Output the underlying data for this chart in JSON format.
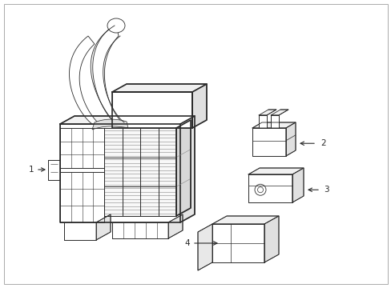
{
  "background_color": "#ffffff",
  "line_color": "#2a2a2a",
  "thin_line": 0.6,
  "thick_line": 1.2,
  "figsize": [
    4.89,
    3.6
  ],
  "dpi": 100,
  "border_color": "#aaaaaa"
}
